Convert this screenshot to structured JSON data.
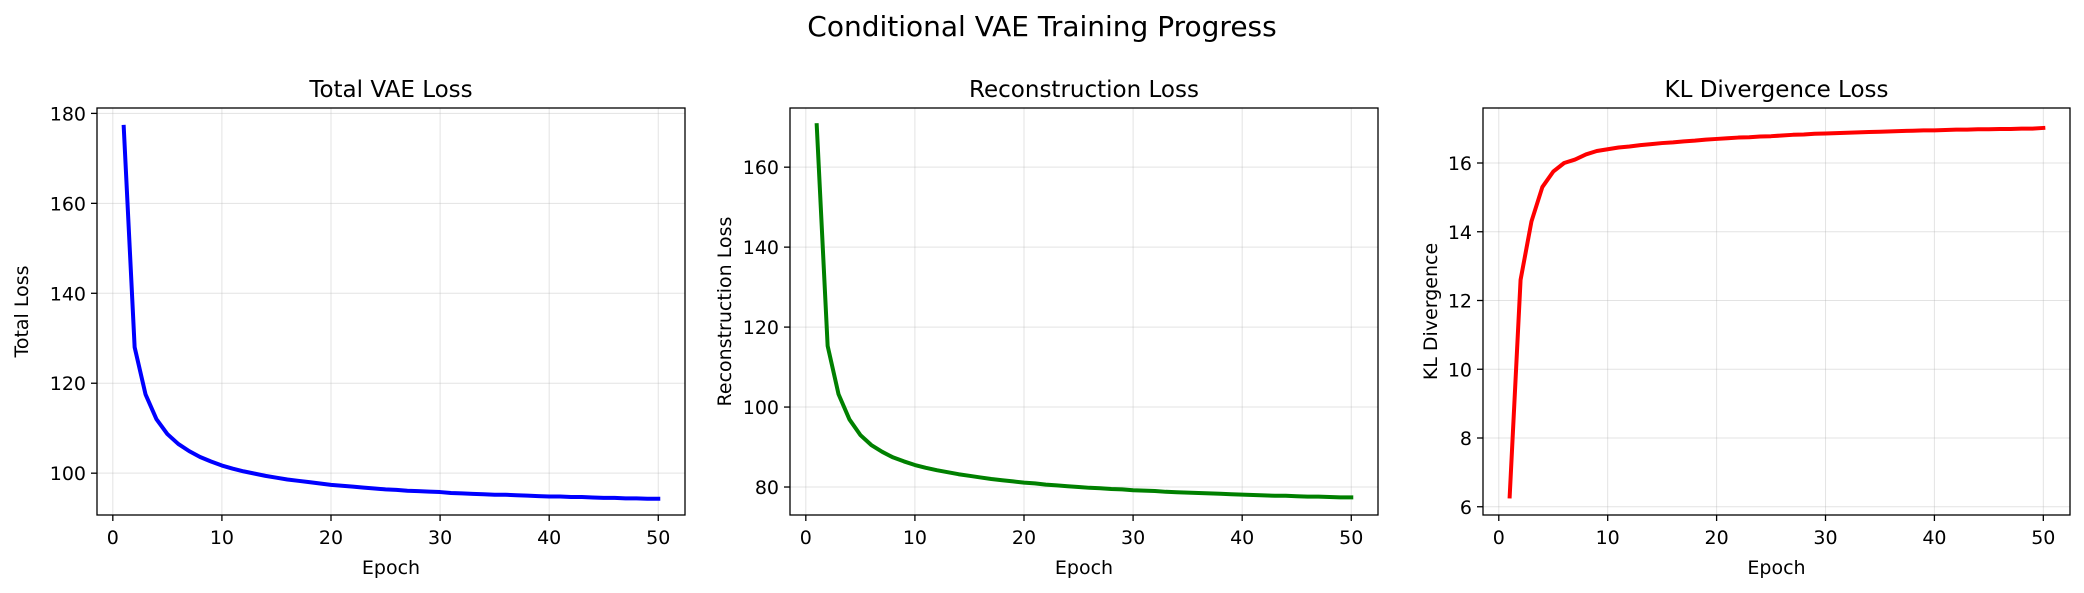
{
  "figure": {
    "suptitle": "Conditional VAE Training Progress"
  },
  "chart_data": [
    {
      "type": "line",
      "title": "Total VAE Loss",
      "xlabel": "Epoch",
      "ylabel": "Total Loss",
      "xlim": [
        -1.45,
        52.45
      ],
      "ylim": [
        90.7,
        181.2
      ],
      "xticks": [
        0,
        10,
        20,
        30,
        40,
        50
      ],
      "yticks": [
        100,
        120,
        140,
        160,
        180
      ],
      "grid": true,
      "series": [
        {
          "color": "#0000ff",
          "x": [
            1,
            2,
            3,
            4,
            5,
            6,
            7,
            8,
            9,
            10,
            11,
            12,
            13,
            14,
            15,
            16,
            17,
            18,
            19,
            20,
            21,
            22,
            23,
            24,
            25,
            26,
            27,
            28,
            29,
            30,
            31,
            32,
            33,
            34,
            35,
            36,
            37,
            38,
            39,
            40,
            41,
            42,
            43,
            44,
            45,
            46,
            47,
            48,
            49,
            50
          ],
          "values": [
            177.0,
            128.0,
            117.5,
            112.0,
            108.7,
            106.5,
            104.9,
            103.6,
            102.6,
            101.7,
            101.0,
            100.4,
            99.9,
            99.4,
            99.0,
            98.6,
            98.3,
            98.0,
            97.7,
            97.4,
            97.2,
            97.0,
            96.8,
            96.6,
            96.4,
            96.3,
            96.1,
            96.0,
            95.9,
            95.8,
            95.6,
            95.5,
            95.4,
            95.3,
            95.2,
            95.2,
            95.1,
            95.0,
            94.9,
            94.8,
            94.8,
            94.7,
            94.7,
            94.6,
            94.5,
            94.5,
            94.4,
            94.4,
            94.3,
            94.3
          ]
        }
      ]
    },
    {
      "type": "line",
      "title": "Reconstruction Loss",
      "xlabel": "Epoch",
      "ylabel": "Reconstruction Loss",
      "xlim": [
        -1.45,
        52.45
      ],
      "ylim": [
        73.0,
        174.8
      ],
      "xticks": [
        0,
        10,
        20,
        30,
        40,
        50
      ],
      "yticks": [
        80,
        100,
        120,
        140,
        160
      ],
      "grid": true,
      "series": [
        {
          "color": "#008000",
          "x": [
            1,
            2,
            3,
            4,
            5,
            6,
            7,
            8,
            9,
            10,
            11,
            12,
            13,
            14,
            15,
            16,
            17,
            18,
            19,
            20,
            21,
            22,
            23,
            24,
            25,
            26,
            27,
            28,
            29,
            30,
            31,
            32,
            33,
            34,
            35,
            36,
            37,
            38,
            39,
            40,
            41,
            42,
            43,
            44,
            45,
            46,
            47,
            48,
            49,
            50
          ],
          "values": [
            170.5,
            115.3,
            103.2,
            96.9,
            93.0,
            90.5,
            88.8,
            87.4,
            86.4,
            85.5,
            84.8,
            84.2,
            83.7,
            83.2,
            82.8,
            82.4,
            82.0,
            81.7,
            81.4,
            81.1,
            80.9,
            80.6,
            80.4,
            80.2,
            80.0,
            79.8,
            79.7,
            79.5,
            79.4,
            79.2,
            79.1,
            79.0,
            78.8,
            78.7,
            78.6,
            78.5,
            78.4,
            78.3,
            78.2,
            78.1,
            78.0,
            77.9,
            77.8,
            77.8,
            77.7,
            77.6,
            77.6,
            77.5,
            77.4,
            77.4
          ]
        }
      ]
    },
    {
      "type": "line",
      "title": "KL Divergence Loss",
      "xlabel": "Epoch",
      "ylabel": "KL Divergence",
      "xlim": [
        -1.45,
        52.45
      ],
      "ylim": [
        5.76,
        17.6
      ],
      "xticks": [
        0,
        10,
        20,
        30,
        40,
        50
      ],
      "yticks": [
        6,
        8,
        10,
        12,
        14,
        16
      ],
      "grid": true,
      "series": [
        {
          "color": "#ff0000",
          "x": [
            1,
            2,
            3,
            4,
            5,
            6,
            7,
            8,
            9,
            10,
            11,
            12,
            13,
            14,
            15,
            16,
            17,
            18,
            19,
            20,
            21,
            22,
            23,
            24,
            25,
            26,
            27,
            28,
            29,
            30,
            31,
            32,
            33,
            34,
            35,
            36,
            37,
            38,
            39,
            40,
            41,
            42,
            43,
            44,
            45,
            46,
            47,
            48,
            49,
            50
          ],
          "values": [
            6.3,
            12.6,
            14.3,
            15.3,
            15.75,
            16.0,
            16.1,
            16.25,
            16.35,
            16.4,
            16.45,
            16.48,
            16.52,
            16.55,
            16.58,
            16.6,
            16.63,
            16.65,
            16.68,
            16.7,
            16.72,
            16.74,
            16.75,
            16.77,
            16.78,
            16.8,
            16.82,
            16.83,
            16.85,
            16.86,
            16.87,
            16.88,
            16.89,
            16.9,
            16.91,
            16.92,
            16.93,
            16.94,
            16.95,
            16.95,
            16.96,
            16.97,
            16.97,
            16.98,
            16.98,
            16.99,
            16.99,
            17.0,
            17.0,
            17.02
          ]
        }
      ]
    }
  ]
}
